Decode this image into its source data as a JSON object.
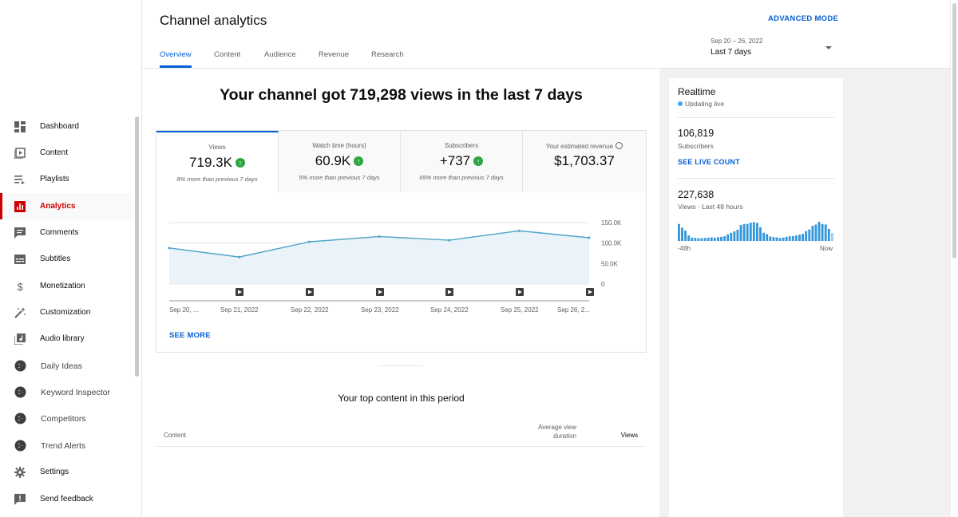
{
  "sidebar": {
    "items": [
      {
        "label": "Dashboard",
        "icon": "dashboard-icon",
        "active": false
      },
      {
        "label": "Content",
        "icon": "content-icon",
        "active": false
      },
      {
        "label": "Playlists",
        "icon": "playlists-icon",
        "active": false
      },
      {
        "label": "Analytics",
        "icon": "analytics-icon",
        "active": true
      },
      {
        "label": "Comments",
        "icon": "comments-icon",
        "active": false
      },
      {
        "label": "Subtitles",
        "icon": "subtitles-icon",
        "active": false
      },
      {
        "label": "Monetization",
        "icon": "dollar-icon",
        "active": false
      },
      {
        "label": "Customization",
        "icon": "magic-wand-icon",
        "active": false
      },
      {
        "label": "Audio library",
        "icon": "audio-library-icon",
        "active": false
      },
      {
        "label": "Daily Ideas",
        "icon": "extension-icon",
        "active": false
      },
      {
        "label": "Keyword Inspector",
        "icon": "extension-icon",
        "active": false
      },
      {
        "label": "Competitors",
        "icon": "extension-icon",
        "active": false
      },
      {
        "label": "Trend Alerts",
        "icon": "extension-icon",
        "active": false
      },
      {
        "label": "Settings",
        "icon": "gear-icon",
        "active": false
      },
      {
        "label": "Send feedback",
        "icon": "feedback-icon",
        "active": false
      }
    ]
  },
  "header": {
    "title": "Channel analytics",
    "advanced_mode": "ADVANCED MODE",
    "tabs": [
      {
        "label": "Overview",
        "active": true
      },
      {
        "label": "Content",
        "active": false
      },
      {
        "label": "Audience",
        "active": false
      },
      {
        "label": "Revenue",
        "active": false
      },
      {
        "label": "Research",
        "active": false
      }
    ],
    "date_range": "Sep 20 – 26, 2022",
    "period": "Last 7 days"
  },
  "overview": {
    "headline": "Your channel got 719,298 views in the last 7 days",
    "metrics": [
      {
        "label": "Views",
        "value": "719.3K",
        "note": "8% more than previous 7 days",
        "trend": "up"
      },
      {
        "label": "Watch time (hours)",
        "value": "60.9K",
        "note": "5% more than previous 7 days",
        "trend": "up"
      },
      {
        "label": "Subscribers",
        "value": "+737",
        "note": "65% more than previous 7 days",
        "trend": "up"
      },
      {
        "label": "Your estimated revenue",
        "value": "$1,703.37",
        "note": "",
        "trend": "info"
      }
    ],
    "see_more": "SEE MORE",
    "top_content_title": "Your top content in this period",
    "table_headers": {
      "content": "Content",
      "avg_view_duration": "Average view duration",
      "views": "Views"
    }
  },
  "chart_data": {
    "type": "area",
    "x": [
      "Sep 20, ...",
      "Sep 21, 2022",
      "Sep 22, 2022",
      "Sep 23, 2022",
      "Sep 24, 2022",
      "Sep 25, 2022",
      "Sep 26, 2..."
    ],
    "values": [
      88000,
      66000,
      103000,
      116000,
      107000,
      130000,
      113000
    ],
    "yticks": [
      "150.0K",
      "100.0K",
      "50.0K",
      "0"
    ],
    "ylim": [
      0,
      150000
    ],
    "grid": true,
    "color": "#4fa3c7",
    "fill": "#e9f3f9",
    "video_markers": true
  },
  "realtime": {
    "title": "Realtime",
    "status": "Updating live",
    "subscribers_value": "106,819",
    "subscribers_label": "Subscribers",
    "see_live_count": "SEE LIVE COUNT",
    "views_value": "227,638",
    "views_label": "Views · Last 48 hours",
    "axis_start": "-48h",
    "axis_end": "Now",
    "bar_color": "#3598db",
    "hourly_views": [
      62,
      48,
      38,
      20,
      12,
      11,
      10,
      10,
      11,
      12,
      13,
      12,
      14,
      15,
      17,
      24,
      30,
      35,
      41,
      58,
      62,
      62,
      67,
      69,
      66,
      50,
      30,
      25,
      16,
      14,
      13,
      11,
      12,
      15,
      17,
      18,
      20,
      23,
      26,
      36,
      42,
      55,
      60,
      70,
      62,
      60,
      44,
      29
    ]
  }
}
